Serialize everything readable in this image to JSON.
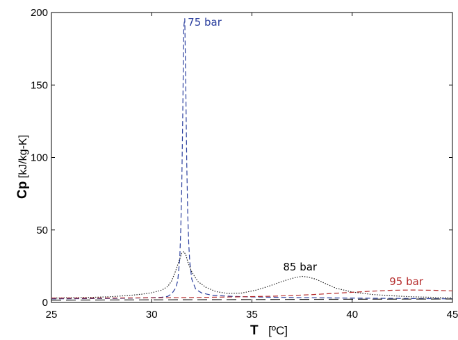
{
  "chart_data": {
    "type": "line",
    "xlabel_main": "T",
    "xlabel_unit": "[ºC]",
    "ylabel_main": "Cp",
    "ylabel_unit": "[kJ/kg-K]",
    "xlim": [
      25,
      45
    ],
    "ylim": [
      0,
      200
    ],
    "xticks": [
      25,
      30,
      35,
      40,
      45
    ],
    "yticks": [
      0,
      50,
      100,
      150,
      200
    ],
    "grid": false,
    "series": [
      {
        "name": "75 bar",
        "color": "#2b3f9e",
        "dash": "dashed",
        "x": [
          25,
          26,
          27,
          28,
          29,
          29.5,
          30,
          30.5,
          30.8,
          31.0,
          31.2,
          31.3,
          31.4,
          31.45,
          31.5,
          31.55,
          31.6,
          31.65,
          31.7,
          31.75,
          31.8,
          31.85,
          31.9,
          32.0,
          32.2,
          32.5,
          33,
          34,
          35,
          37,
          40,
          45
        ],
        "y": [
          2.5,
          2.6,
          2.7,
          2.8,
          3.0,
          3.1,
          3.3,
          3.6,
          4.2,
          6,
          10,
          15,
          30,
          50,
          80,
          130,
          190,
          196,
          150,
          95,
          60,
          40,
          28,
          16,
          9,
          6.5,
          5,
          4.2,
          3.8,
          3.4,
          3.0,
          2.5
        ]
      },
      {
        "name": "85 bar",
        "color": "#222222",
        "dash": "dotted",
        "x": [
          25,
          27,
          28,
          29,
          29.5,
          30,
          30.5,
          30.8,
          31.0,
          31.2,
          31.4,
          31.5,
          31.6,
          31.7,
          31.8,
          32.0,
          32.3,
          32.7,
          33.2,
          33.8,
          34.5,
          35.2,
          35.8,
          36.3,
          36.8,
          37.2,
          37.5,
          37.8,
          38.2,
          38.7,
          39.2,
          40,
          41,
          42,
          43,
          45
        ],
        "y": [
          3.0,
          3.5,
          4.0,
          5.0,
          5.7,
          6.7,
          8.5,
          11,
          15,
          22,
          30,
          34,
          35,
          33,
          28,
          21,
          14.5,
          10.5,
          7.5,
          6.2,
          6.5,
          8.5,
          11,
          13.5,
          15.8,
          17.3,
          18,
          17.5,
          16,
          12.8,
          9.8,
          7.2,
          5.5,
          4.6,
          3.9,
          3.2
        ]
      },
      {
        "name": "95 bar",
        "color": "#b52b2b",
        "dash": "dashed",
        "x": [
          25,
          27,
          30,
          32,
          34,
          36,
          37,
          38,
          39,
          40,
          41,
          42,
          43,
          44,
          45
        ],
        "y": [
          3.0,
          3.0,
          3.2,
          3.4,
          3.8,
          4.3,
          4.8,
          5.4,
          6.2,
          7.0,
          7.8,
          8.4,
          8.6,
          8.4,
          8.0
        ]
      },
      {
        "name": "",
        "color": "#222222",
        "dash": "longdash",
        "x": [
          25,
          30,
          35,
          40,
          45
        ],
        "y": [
          1.6,
          1.8,
          2.0,
          2.2,
          2.4
        ]
      }
    ],
    "annotations": [
      {
        "text": "75 bar",
        "x": 31.8,
        "y": 191,
        "color": "#2b3f9e",
        "anchor": "start"
      },
      {
        "text": "85 bar",
        "x": 37.4,
        "y": 22,
        "color": "#000000",
        "anchor": "middle"
      },
      {
        "text": "95 bar",
        "x": 42.7,
        "y": 12,
        "color": "#b52b2b",
        "anchor": "middle"
      }
    ]
  }
}
